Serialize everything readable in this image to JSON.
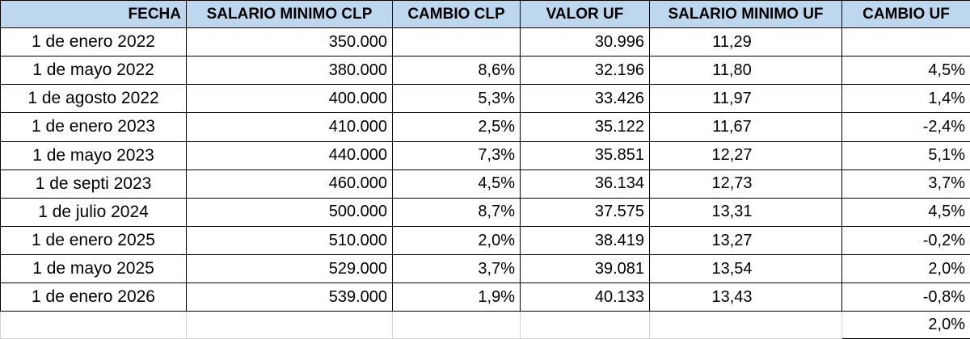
{
  "headers": [
    "FECHA",
    "SALARIO MINIMO CLP",
    "CAMBIO  CLP",
    "VALOR UF",
    "SALARIO MINIMO UF",
    "CAMBIO  UF"
  ],
  "rows": [
    [
      "1 de enero 2022",
      "350.000",
      "",
      "30.996",
      "11,29",
      ""
    ],
    [
      "1 de mayo 2022",
      "380.000",
      "8,6%",
      "32.196",
      "11,80",
      "4,5%"
    ],
    [
      "1 de agosto 2022",
      "400.000",
      "5,3%",
      "33.426",
      "11,97",
      "1,4%"
    ],
    [
      "1 de enero 2023",
      "410.000",
      "2,5%",
      "35.122",
      "11,67",
      "-2,4%"
    ],
    [
      "1 de mayo 2023",
      "440.000",
      "7,3%",
      "35.851",
      "12,27",
      "5,1%"
    ],
    [
      "1 de septi 2023",
      "460.000",
      "4,5%",
      "36.134",
      "12,73",
      "3,7%"
    ],
    [
      "1 de julio 2024",
      "500.000",
      "8,7%",
      "37.575",
      "13,31",
      "4,5%"
    ],
    [
      "1 de enero 2025",
      "510.000",
      "2,0%",
      "38.419",
      "13,27",
      "-0,2%"
    ],
    [
      "1 de mayo 2025",
      "529.000",
      "3,7%",
      "39.081",
      "13,54",
      "2,0%"
    ],
    [
      "1 de enero 2026",
      "539.000",
      "1,9%",
      "40.133",
      "13,43",
      "-0,8%"
    ]
  ],
  "footer": [
    "",
    "",
    "",
    "",
    "",
    "2,0%"
  ],
  "colors": {
    "header_fill": "#bdd7ee",
    "grid": "#000000",
    "faint_grid": "#d4d4d4"
  }
}
